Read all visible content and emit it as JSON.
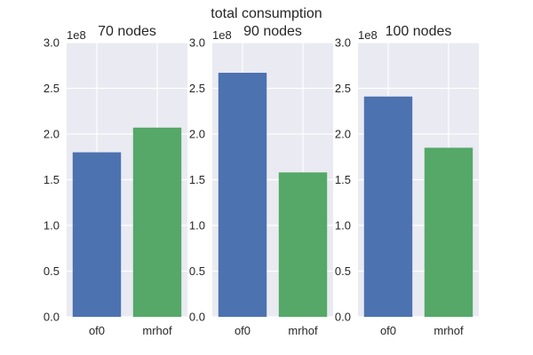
{
  "figure": {
    "suptitle": "total consumption"
  },
  "chart_data": [
    {
      "type": "bar",
      "title": "70 nodes",
      "categories": [
        "of0",
        "mrhof"
      ],
      "values": [
        180000000,
        207000000
      ],
      "colors": [
        "#4c72b0",
        "#55a868"
      ],
      "ylim": [
        0,
        300000000
      ],
      "yticks": [
        0,
        50000000,
        100000000,
        150000000,
        200000000,
        250000000,
        300000000
      ],
      "ytick_labels": [
        "0.0",
        "0.5",
        "1.0",
        "1.5",
        "2.0",
        "2.5",
        "3.0"
      ],
      "y_offset_label": "1e8",
      "xlabel": "",
      "ylabel": "",
      "grid": true,
      "background": "#eaeaf2"
    },
    {
      "type": "bar",
      "title": "90 nodes",
      "categories": [
        "of0",
        "mrhof"
      ],
      "values": [
        267000000,
        158000000
      ],
      "colors": [
        "#4c72b0",
        "#55a868"
      ],
      "ylim": [
        0,
        300000000
      ],
      "yticks": [
        0,
        50000000,
        100000000,
        150000000,
        200000000,
        250000000,
        300000000
      ],
      "ytick_labels": [
        "0.0",
        "0.5",
        "1.0",
        "1.5",
        "2.0",
        "2.5",
        "3.0"
      ],
      "y_offset_label": "1e8",
      "xlabel": "",
      "ylabel": "",
      "grid": true,
      "background": "#eaeaf2"
    },
    {
      "type": "bar",
      "title": "100 nodes",
      "categories": [
        "of0",
        "mrhof"
      ],
      "values": [
        241000000,
        185000000
      ],
      "colors": [
        "#4c72b0",
        "#55a868"
      ],
      "ylim": [
        0,
        300000000
      ],
      "yticks": [
        0,
        50000000,
        100000000,
        150000000,
        200000000,
        250000000,
        300000000
      ],
      "ytick_labels": [
        "0.0",
        "0.5",
        "1.0",
        "1.5",
        "2.0",
        "2.5",
        "3.0"
      ],
      "y_offset_label": "1e8",
      "xlabel": "",
      "ylabel": "",
      "grid": true,
      "background": "#eaeaf2"
    }
  ]
}
